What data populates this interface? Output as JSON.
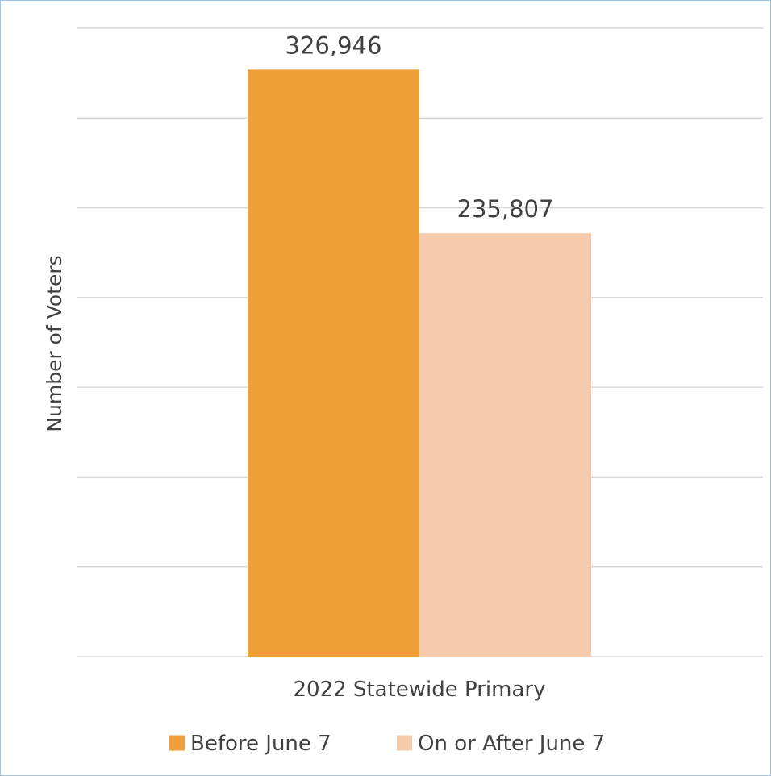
{
  "chart_data": {
    "type": "bar",
    "title": "",
    "xlabel": "",
    "ylabel": "Number of Voters",
    "categories": [
      "2022 Statewide Primary"
    ],
    "series": [
      {
        "name": "Before June 7",
        "values": [
          326946
        ],
        "label": "326,946",
        "color": "#f0a03a"
      },
      {
        "name": "On or After June 7",
        "values": [
          235807
        ],
        "label": "235,807",
        "color": "#f7cbad"
      }
    ],
    "ylim": [
      0,
      350000
    ],
    "grid": true,
    "legend_position": "bottom"
  }
}
